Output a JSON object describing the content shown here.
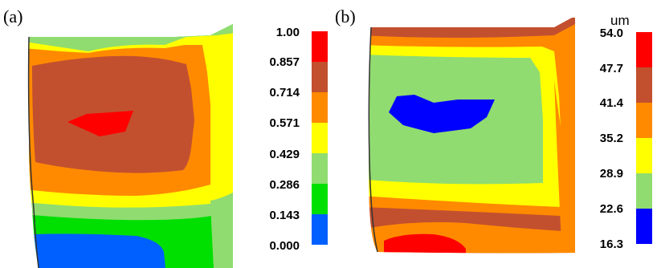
{
  "panel_a": {
    "label": "(a)",
    "colorbar": {
      "ticks": [
        "1.00",
        "0.857",
        "0.714",
        "0.571",
        "0.429",
        "0.286",
        "0.143",
        "0.000"
      ],
      "colors": [
        "#ff0000",
        "#c2502f",
        "#ff8a00",
        "#ffff00",
        "#90dc70",
        "#00e000",
        "#0060ff"
      ]
    }
  },
  "panel_b": {
    "label": "(b)",
    "unit": "um",
    "colorbar": {
      "ticks": [
        "54.0",
        "47.7",
        "41.4",
        "35.2",
        "28.9",
        "22.6",
        "16.3"
      ],
      "colors": [
        "#ff0000",
        "#c2502f",
        "#ff8a00",
        "#ffff00",
        "#90dc70",
        "#0000ff"
      ]
    }
  }
}
